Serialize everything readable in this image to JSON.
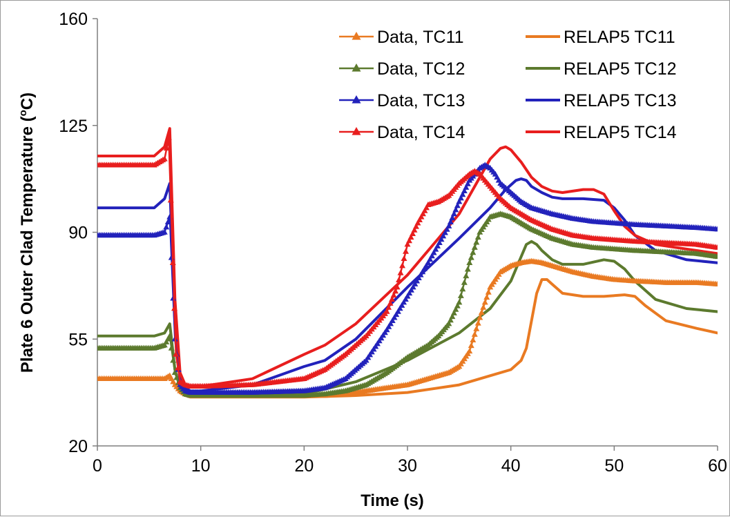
{
  "chart_data": {
    "type": "line",
    "xlabel": "Time (s)",
    "ylabel_main": "Plate 6 Outer Clad Temperature (",
    "ylabel_sup": "o",
    "ylabel_end": "C)",
    "xlim": [
      0,
      60
    ],
    "ylim": [
      20,
      160
    ],
    "xticks": [
      0,
      10,
      20,
      30,
      40,
      50,
      60
    ],
    "yticks": [
      20,
      55,
      90,
      125,
      160
    ],
    "grid": false,
    "legend_position": "top-right",
    "series": [
      {
        "name": "Data, TC11",
        "color": "#E97A22",
        "style": "data",
        "x": [
          0,
          6.5,
          7.0,
          7.5,
          8.0,
          8.5,
          9,
          10,
          15,
          20,
          22,
          24,
          26,
          28,
          30,
          32,
          34,
          35,
          36,
          37,
          38,
          39,
          40,
          41,
          42,
          43,
          44,
          46,
          48,
          50,
          52,
          55,
          58,
          60
        ],
        "y": [
          42,
          42,
          43,
          40,
          38,
          37,
          36.5,
          36.5,
          36.5,
          36.5,
          36.5,
          37,
          38,
          39,
          40,
          42,
          44,
          46,
          51,
          62,
          72,
          77,
          79,
          80,
          80.5,
          80,
          79,
          77,
          75.5,
          74.5,
          74,
          73.5,
          73.5,
          73
        ]
      },
      {
        "name": "Data, TC12",
        "color": "#5C7A2E",
        "style": "data",
        "x": [
          0,
          5.5,
          6.5,
          7.0,
          7.5,
          8.0,
          8.5,
          9,
          10,
          15,
          20,
          22,
          24,
          26,
          28,
          30,
          32,
          33,
          34,
          35,
          36,
          37,
          38,
          39,
          40,
          41,
          42,
          44,
          46,
          48,
          50,
          52,
          55,
          58,
          60
        ],
        "y": [
          52,
          52,
          53,
          56,
          44,
          39,
          37,
          36.5,
          36.5,
          36.5,
          36.5,
          37,
          38,
          40,
          44,
          49,
          53,
          56,
          60,
          67,
          80,
          90,
          95,
          96,
          95,
          93,
          91,
          88,
          86,
          85,
          84.5,
          84,
          83.5,
          83,
          82
        ]
      },
      {
        "name": "Data, TC13",
        "color": "#2222BB",
        "style": "data",
        "x": [
          0,
          5.5,
          6.5,
          7.0,
          7.5,
          8.0,
          8.5,
          9,
          10,
          15,
          20,
          22,
          24,
          26,
          28,
          30,
          32,
          34,
          35,
          36,
          37,
          37.5,
          38,
          38.5,
          39,
          40,
          41,
          42,
          44,
          46,
          48,
          50,
          52,
          55,
          58,
          60
        ],
        "y": [
          89,
          89,
          90,
          95,
          55,
          40,
          38,
          37.5,
          37.5,
          37.5,
          38,
          39,
          42,
          48,
          58,
          69,
          80,
          92,
          100,
          107,
          111,
          112,
          111,
          109,
          106,
          103,
          100,
          98,
          96,
          94.5,
          93.5,
          93,
          92.5,
          92,
          91.5,
          91
        ]
      },
      {
        "name": "Data, TC14",
        "color": "#E81E1E",
        "style": "data",
        "x": [
          0,
          5.5,
          6.5,
          6.9,
          7.3,
          7.6,
          8.0,
          8.5,
          9,
          10,
          15,
          20,
          22,
          24,
          26,
          28,
          29,
          30,
          31,
          32,
          33,
          34,
          35,
          36,
          36.5,
          37,
          37.5,
          38,
          39,
          40,
          42,
          44,
          46,
          48,
          50,
          52,
          55,
          58,
          60
        ],
        "y": [
          112,
          112,
          114,
          121,
          80,
          50,
          41,
          40,
          39.5,
          39.5,
          40,
          42,
          45,
          50,
          56,
          64,
          72,
          86,
          93,
          99,
          100,
          102,
          106,
          109,
          110,
          109,
          107,
          105,
          101,
          98,
          94,
          91,
          89,
          88,
          87.5,
          87,
          86.5,
          86,
          85
        ]
      },
      {
        "name": "RELAP5 TC11",
        "color": "#E97A22",
        "style": "model",
        "x": [
          0,
          6.5,
          7.0,
          7.5,
          8.0,
          8.5,
          9,
          10,
          15,
          20,
          25,
          30,
          35,
          38,
          40,
          41,
          41.5,
          42,
          42.5,
          43,
          43.5,
          44,
          45,
          47,
          49,
          51,
          52,
          53,
          55,
          58,
          60
        ],
        "y": [
          42,
          42,
          43,
          40,
          37.5,
          36.5,
          36,
          36,
          36,
          36,
          36.5,
          37.5,
          40,
          43,
          45,
          48,
          52,
          61,
          70,
          74.5,
          74.5,
          73,
          70,
          69,
          69,
          69.5,
          69,
          66,
          61,
          58.5,
          57
        ]
      },
      {
        "name": "RELAP5 TC12",
        "color": "#5C7A2E",
        "style": "model",
        "x": [
          0,
          5.5,
          6.5,
          7.0,
          7.5,
          8.0,
          8.5,
          9,
          10,
          15,
          20,
          25,
          30,
          35,
          38,
          40,
          41,
          41.5,
          42,
          42.5,
          43,
          44,
          45,
          47,
          49,
          50,
          51,
          52,
          54,
          57,
          60
        ],
        "y": [
          56,
          56,
          57,
          60,
          45,
          39,
          37,
          36.5,
          36.5,
          36.5,
          37,
          41,
          48,
          57,
          65,
          74,
          82,
          86,
          87,
          86,
          84,
          81,
          79.5,
          79.5,
          81,
          80.5,
          78,
          74,
          68,
          65,
          64
        ]
      },
      {
        "name": "RELAP5 TC13",
        "color": "#2222BB",
        "style": "model",
        "x": [
          0,
          5.5,
          6.5,
          7.0,
          7.5,
          8.0,
          8.5,
          9,
          10,
          15,
          20,
          22,
          25,
          30,
          35,
          38,
          39.5,
          40.5,
          41,
          41.5,
          42,
          43,
          44,
          45,
          47,
          49,
          50,
          51,
          52,
          54,
          57,
          60
        ],
        "y": [
          98,
          98,
          101,
          106,
          60,
          42,
          39,
          38,
          38,
          40,
          46,
          48,
          55,
          72,
          88,
          98,
          104,
          107,
          107.5,
          107,
          105,
          103,
          101.5,
          101,
          101,
          100.5,
          98,
          94,
          89,
          84,
          81,
          80
        ]
      },
      {
        "name": "RELAP5 TC14",
        "color": "#E81E1E",
        "style": "model",
        "x": [
          0,
          5.5,
          6.5,
          7.0,
          7.5,
          8.0,
          8.5,
          9,
          10,
          15,
          20,
          22,
          25,
          30,
          35,
          38,
          39,
          39.5,
          40,
          41,
          42,
          43,
          44,
          45,
          47,
          48,
          49,
          50,
          51,
          52,
          54,
          57,
          60
        ],
        "y": [
          115,
          115,
          118,
          124,
          68,
          44,
          40,
          39.5,
          39.5,
          42,
          50,
          53,
          60,
          76,
          96,
          114,
          117.5,
          118,
          117,
          113,
          108,
          105,
          103.5,
          103,
          104,
          104,
          102.5,
          97,
          92,
          89,
          86,
          84.5,
          83
        ]
      }
    ]
  }
}
